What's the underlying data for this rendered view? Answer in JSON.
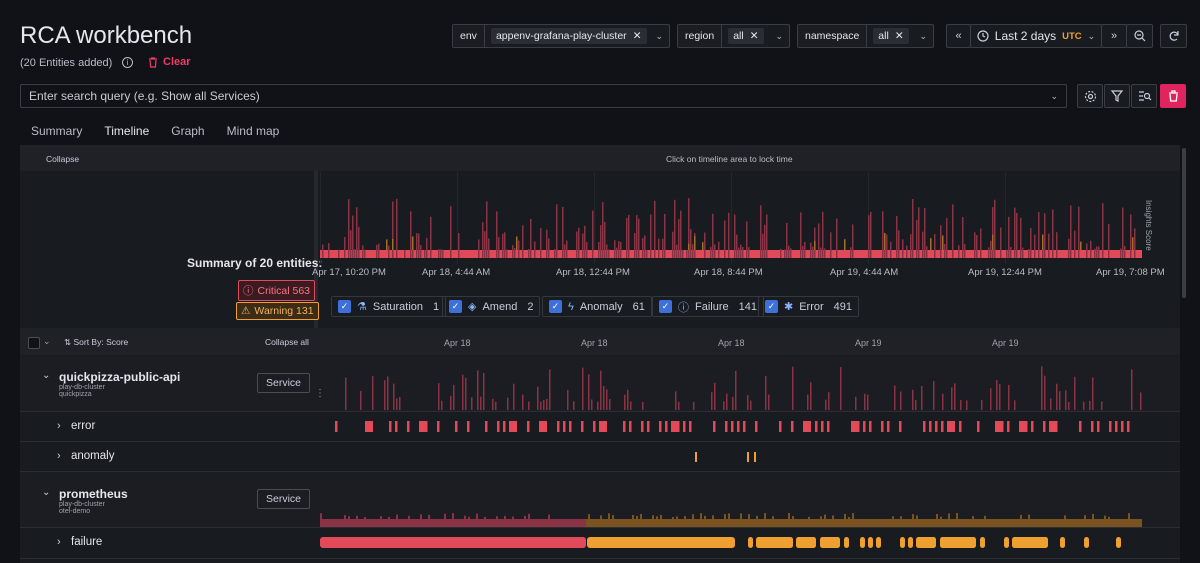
{
  "header": {
    "title": "RCA workbench",
    "entities_added": "(20 Entities added)",
    "clear_label": "Clear"
  },
  "filters": [
    {
      "label": "env",
      "value": "appenv-grafana-play-cluster"
    },
    {
      "label": "region",
      "value": "all"
    },
    {
      "label": "namespace",
      "value": "all"
    }
  ],
  "time": {
    "range": "Last 2 days",
    "tz": "UTC"
  },
  "search": {
    "placeholder": "Enter search query (e.g. Show all Services)"
  },
  "tabs": [
    "Summary",
    "Timeline",
    "Graph",
    "Mind map"
  ],
  "active_tab": "Timeline",
  "timeline": {
    "collapse": "Collapse",
    "hint": "Click on timeline area to lock time",
    "insights_label": "Insights Score",
    "summary_title": "Summary of 20 entities:",
    "critical": "Critical 563",
    "warning": "Warning 131",
    "axis": [
      "Apr 17, 10:20 PM",
      "Apr 18, 4:44 AM",
      "Apr 18, 12:44 PM",
      "Apr 18, 8:44 PM",
      "Apr 19, 4:44 AM",
      "Apr 19, 12:44 PM",
      "Apr 19, 7:08 PM"
    ],
    "legend": [
      {
        "name": "Saturation",
        "count": "1"
      },
      {
        "name": "Amend",
        "count": "2"
      },
      {
        "name": "Anomaly",
        "count": "61"
      },
      {
        "name": "Failure",
        "count": "141"
      },
      {
        "name": "Error",
        "count": "491"
      }
    ],
    "colors": {
      "critical": "#e24a5a",
      "warning": "#f0a030",
      "bar_dark": "#8a3344"
    }
  },
  "list": {
    "sort": "Sort By: Score",
    "collapse_all": "Collapse all",
    "axis2": [
      "Apr 18",
      "Apr 18",
      "Apr 18",
      "Apr 19",
      "Apr 19"
    ],
    "rows": [
      {
        "name": "quickpizza-public-api",
        "sub1": "play-db-cluster",
        "sub2": "quickpizza",
        "type": "Service",
        "children": [
          "error",
          "anomaly"
        ]
      },
      {
        "name": "prometheus",
        "sub1": "play-db-cluster",
        "sub2": "otel-demo",
        "type": "Service",
        "children": [
          "failure"
        ]
      }
    ]
  }
}
